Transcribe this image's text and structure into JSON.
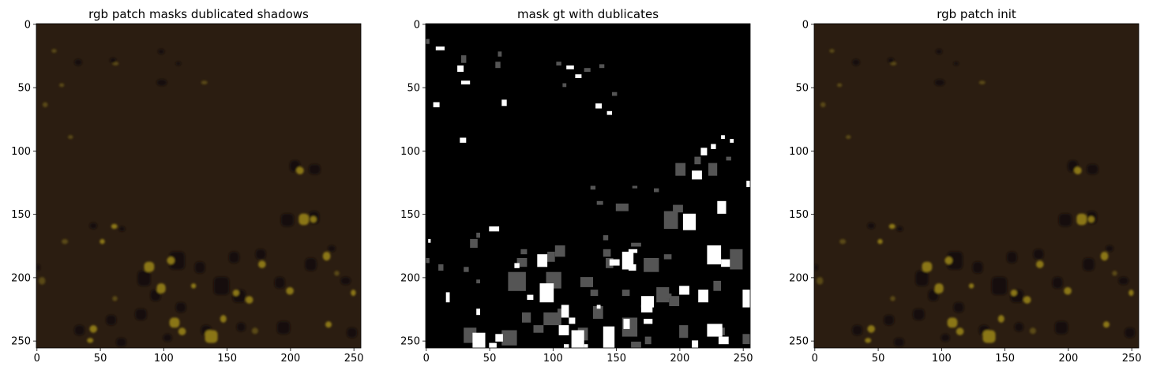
{
  "figure": {
    "panels": [
      {
        "title": "rgb patch masks dublicated shadows",
        "image": {
          "kind": "rgb-patch",
          "background_color": "#2b1d11",
          "blob_colors": {
            "shadow": "#14110c",
            "bright": "#8a7618",
            "dim": "#5a4a14"
          }
        },
        "x_ticks": [
          "0",
          "50",
          "100",
          "150",
          "200",
          "250"
        ],
        "y_ticks": [
          "0",
          "50",
          "100",
          "150",
          "200",
          "250"
        ]
      },
      {
        "title": "mask gt with dublicates",
        "image": {
          "kind": "mask",
          "background_color": "#000000",
          "blob_colors": {
            "object": "#ffffff",
            "duplicate": "#555555"
          }
        },
        "x_ticks": [
          "0",
          "50",
          "100",
          "150",
          "200",
          "250"
        ],
        "y_ticks": [
          "0",
          "50",
          "100",
          "150",
          "200",
          "250"
        ]
      },
      {
        "title": "rgb patch init",
        "image": {
          "kind": "rgb-patch",
          "background_color": "#2b1d11",
          "blob_colors": {
            "shadow": "#14110c",
            "bright": "#8a7618",
            "dim": "#5a4a14"
          }
        },
        "x_ticks": [
          "0",
          "50",
          "100",
          "150",
          "200",
          "250"
        ],
        "y_ticks": [
          "0",
          "50",
          "100",
          "150",
          "200",
          "250"
        ]
      }
    ]
  }
}
